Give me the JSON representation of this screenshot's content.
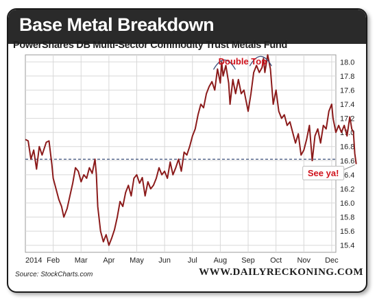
{
  "header": {
    "banner_title": "Base Metal Breakdown",
    "subtitle": "PowerShares DB Multi-Sector Commodity Trust Metals Fund"
  },
  "footer": {
    "source": "Source: StockCharts.com",
    "brand": "WWW.DAILYRECKONING.COM"
  },
  "colors": {
    "banner": "#2a2a2a",
    "series": "#8b1a1a",
    "reference_line": "#3b4f7a",
    "annotation": "#d0121c"
  },
  "chart_data": {
    "type": "line",
    "title": "PowerShares DB Multi-Sector Commodity Trust Metals Fund",
    "xlabel": "",
    "ylabel": "",
    "x_tick_labels": [
      "2014",
      "Feb",
      "Mar",
      "Apr",
      "May",
      "Jun",
      "Jul",
      "Aug",
      "Sep",
      "Oct",
      "Nov",
      "Dec"
    ],
    "y_ticks": [
      15.4,
      15.6,
      15.8,
      16.0,
      16.2,
      16.4,
      16.6,
      16.8,
      17.0,
      17.2,
      17.4,
      17.6,
      17.8,
      18.0
    ],
    "ylim": [
      15.3,
      18.1
    ],
    "y_axis_position": "right",
    "grid": true,
    "reference_line": {
      "value": 16.62,
      "style": "dashed"
    },
    "annotations": [
      {
        "text": "Double Top",
        "x": 9.55
      },
      {
        "text": "See ya!",
        "x": 11.8
      }
    ],
    "series": [
      {
        "values": [
          [
            0.0,
            16.9
          ],
          [
            0.1,
            16.88
          ],
          [
            0.2,
            16.62
          ],
          [
            0.3,
            16.75
          ],
          [
            0.4,
            16.48
          ],
          [
            0.5,
            16.8
          ],
          [
            0.6,
            16.68
          ],
          [
            0.75,
            16.86
          ],
          [
            0.85,
            16.88
          ],
          [
            0.95,
            16.55
          ],
          [
            1.0,
            16.35
          ],
          [
            1.1,
            16.2
          ],
          [
            1.2,
            16.05
          ],
          [
            1.3,
            15.95
          ],
          [
            1.38,
            15.8
          ],
          [
            1.5,
            15.92
          ],
          [
            1.6,
            16.1
          ],
          [
            1.7,
            16.28
          ],
          [
            1.8,
            16.5
          ],
          [
            1.9,
            16.45
          ],
          [
            2.0,
            16.3
          ],
          [
            2.1,
            16.4
          ],
          [
            2.2,
            16.35
          ],
          [
            2.3,
            16.5
          ],
          [
            2.4,
            16.42
          ],
          [
            2.5,
            16.62
          ],
          [
            2.55,
            16.4
          ],
          [
            2.6,
            15.95
          ],
          [
            2.7,
            15.6
          ],
          [
            2.8,
            15.45
          ],
          [
            2.9,
            15.55
          ],
          [
            3.0,
            15.4
          ],
          [
            3.1,
            15.5
          ],
          [
            3.2,
            15.62
          ],
          [
            3.3,
            15.8
          ],
          [
            3.4,
            16.02
          ],
          [
            3.5,
            15.95
          ],
          [
            3.6,
            16.15
          ],
          [
            3.7,
            16.25
          ],
          [
            3.8,
            16.1
          ],
          [
            3.9,
            16.35
          ],
          [
            4.0,
            16.4
          ],
          [
            4.1,
            16.28
          ],
          [
            4.2,
            16.36
          ],
          [
            4.3,
            16.1
          ],
          [
            4.4,
            16.3
          ],
          [
            4.5,
            16.2
          ],
          [
            4.6,
            16.25
          ],
          [
            4.7,
            16.35
          ],
          [
            4.8,
            16.5
          ],
          [
            4.9,
            16.4
          ],
          [
            5.0,
            16.45
          ],
          [
            5.1,
            16.35
          ],
          [
            5.2,
            16.58
          ],
          [
            5.3,
            16.4
          ],
          [
            5.4,
            16.5
          ],
          [
            5.5,
            16.62
          ],
          [
            5.6,
            16.45
          ],
          [
            5.7,
            16.72
          ],
          [
            5.8,
            16.68
          ],
          [
            5.9,
            16.8
          ],
          [
            6.0,
            16.95
          ],
          [
            6.1,
            17.05
          ],
          [
            6.2,
            17.25
          ],
          [
            6.3,
            17.4
          ],
          [
            6.4,
            17.35
          ],
          [
            6.5,
            17.55
          ],
          [
            6.6,
            17.65
          ],
          [
            6.7,
            17.72
          ],
          [
            6.8,
            17.6
          ],
          [
            6.9,
            17.9
          ],
          [
            7.0,
            17.7
          ],
          [
            7.05,
            18.0
          ],
          [
            7.1,
            17.8
          ],
          [
            7.2,
            17.95
          ],
          [
            7.3,
            17.7
          ],
          [
            7.35,
            17.4
          ],
          [
            7.45,
            17.75
          ],
          [
            7.55,
            17.55
          ],
          [
            7.65,
            17.75
          ],
          [
            7.75,
            17.55
          ],
          [
            7.85,
            17.6
          ],
          [
            8.0,
            17.3
          ],
          [
            8.1,
            17.55
          ],
          [
            8.2,
            17.85
          ],
          [
            8.3,
            17.95
          ],
          [
            8.4,
            17.85
          ],
          [
            8.5,
            17.92
          ],
          [
            8.55,
            18.05
          ],
          [
            8.6,
            17.85
          ],
          [
            8.7,
            18.1
          ],
          [
            8.8,
            17.9
          ],
          [
            8.9,
            17.4
          ],
          [
            9.0,
            17.6
          ],
          [
            9.1,
            17.3
          ],
          [
            9.2,
            17.2
          ],
          [
            9.3,
            17.25
          ],
          [
            9.4,
            17.1
          ],
          [
            9.5,
            17.15
          ],
          [
            9.6,
            17.0
          ],
          [
            9.7,
            16.85
          ],
          [
            9.8,
            16.98
          ],
          [
            9.9,
            16.68
          ],
          [
            10.0,
            16.75
          ],
          [
            10.1,
            16.9
          ],
          [
            10.2,
            17.1
          ],
          [
            10.3,
            16.6
          ],
          [
            10.4,
            16.95
          ],
          [
            10.5,
            17.05
          ],
          [
            10.6,
            16.85
          ],
          [
            10.7,
            17.1
          ],
          [
            10.8,
            17.05
          ],
          [
            10.9,
            17.3
          ],
          [
            11.0,
            17.4
          ],
          [
            11.05,
            17.2
          ],
          [
            11.15,
            17.0
          ],
          [
            11.25,
            17.1
          ],
          [
            11.35,
            17.0
          ],
          [
            11.45,
            17.1
          ],
          [
            11.55,
            16.95
          ],
          [
            11.65,
            17.22
          ],
          [
            11.72,
            17.05
          ],
          [
            11.78,
            17.0
          ],
          [
            11.83,
            16.7
          ],
          [
            11.88,
            16.55
          ]
        ]
      }
    ]
  }
}
